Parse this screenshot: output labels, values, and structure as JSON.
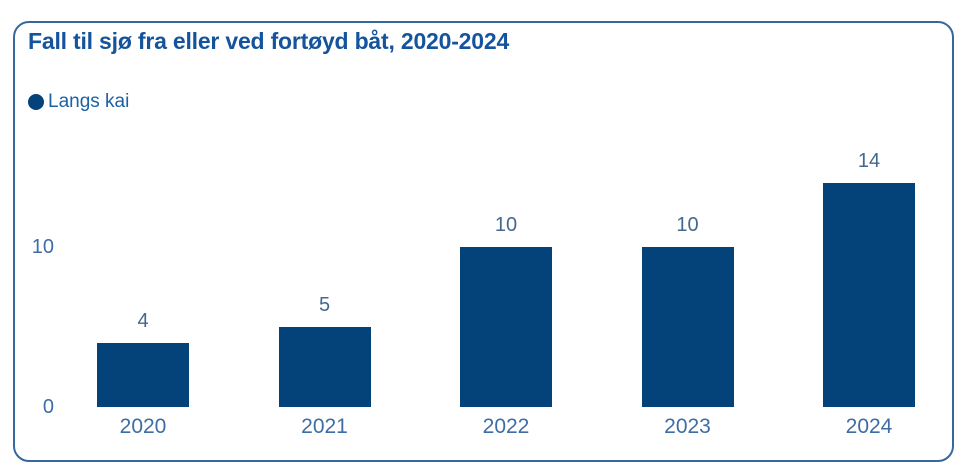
{
  "card": {
    "title": "Fall til sjø fra eller ved fortøyd båt, 2020-2024"
  },
  "legend": {
    "label": "Langs kai"
  },
  "chart_data": {
    "type": "bar",
    "title": "Fall til sjø fra eller ved fortøyd båt, 2020-2024",
    "categories": [
      "2020",
      "2021",
      "2022",
      "2023",
      "2024"
    ],
    "series": [
      {
        "name": "Langs kai",
        "values": [
          4,
          5,
          10,
          10,
          14
        ]
      }
    ],
    "yticks": [
      0,
      10
    ],
    "ylim": [
      0,
      14
    ],
    "xlabel": "",
    "ylabel": "",
    "grid": false,
    "data_labels": true,
    "legend_position": "top-left",
    "colors": {
      "bar": "#04437a",
      "title": "#15549c",
      "border": "#35689c",
      "axis_label": "#3e6da6",
      "value_label": "#44688f",
      "legend_text": "#1b62a5"
    }
  }
}
